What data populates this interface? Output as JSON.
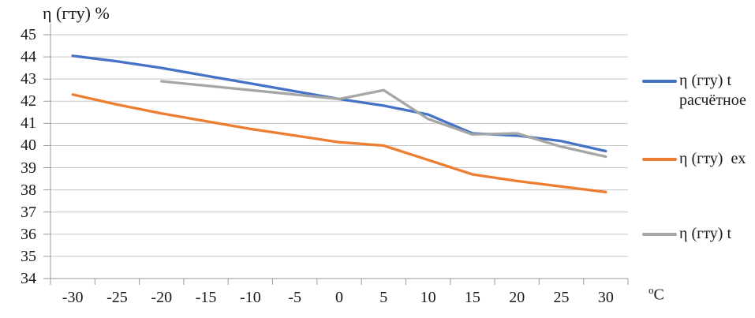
{
  "chart_data": {
    "type": "line",
    "title": "η (гту) %",
    "xlabel": "",
    "ylabel": "η (гту) %",
    "x_unit": {
      "sup": "o",
      "base": "C"
    },
    "categories": [
      -30,
      -25,
      -20,
      -15,
      -10,
      -5,
      0,
      5,
      10,
      15,
      20,
      25,
      30
    ],
    "y_ticks": [
      45,
      44,
      43,
      42,
      41,
      40,
      39,
      38,
      37,
      36,
      35,
      34
    ],
    "ylim": [
      34,
      45
    ],
    "grid": true,
    "legend_position": "right",
    "series": [
      {
        "name": "η (гту) t расчётное",
        "legend_lines": [
          "η (гту) t",
          "расчётное"
        ],
        "color": "#4472C4",
        "values": [
          44.05,
          43.8,
          43.5,
          43.15,
          42.8,
          42.45,
          42.1,
          41.8,
          41.4,
          40.55,
          40.45,
          40.2,
          39.75
        ]
      },
      {
        "name": "η (гту)  ex",
        "legend_lines": [
          "η (гту)  ex"
        ],
        "color": "#ED7D31",
        "values": [
          42.3,
          41.85,
          41.45,
          41.1,
          40.75,
          40.45,
          40.15,
          40.0,
          39.35,
          38.7,
          38.4,
          38.15,
          37.9
        ]
      },
      {
        "name": "η (гту) t",
        "legend_lines": [
          "η (гту) t"
        ],
        "color": "#A6A6A6",
        "values": [
          null,
          null,
          42.9,
          42.7,
          42.5,
          42.3,
          42.1,
          42.5,
          41.2,
          40.5,
          40.55,
          39.95,
          39.5
        ]
      }
    ]
  },
  "colors": {
    "gridline": "#C6C6C6",
    "axis": "#9A9A9A",
    "text": "#1A1A1A"
  }
}
